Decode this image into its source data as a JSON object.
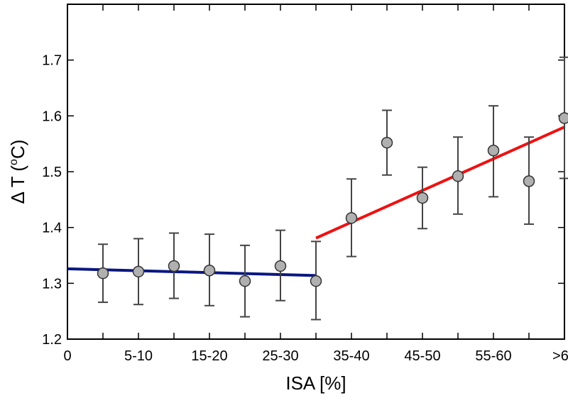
{
  "chart_data": {
    "type": "scatter",
    "xlabel": "ISA [%]",
    "ylabel_main": "Δ T (",
    "ylabel_sup": "o",
    "ylabel_end": "C)",
    "x_tick_labels": [
      "0",
      "5-10",
      "15-20",
      "25-30",
      "35-40",
      "45-50",
      "55-60",
      ">65"
    ],
    "xlim": [
      0,
      70
    ],
    "ylim": [
      1.2,
      1.8
    ],
    "y_ticks": [
      1.2,
      1.3,
      1.4,
      1.5,
      1.6,
      1.7
    ],
    "y_tick_labels": [
      "1.2",
      "1.3",
      "1.4",
      "1.5",
      "1.6",
      "1.7"
    ],
    "grid": false,
    "points": [
      {
        "x": 5,
        "y": 1.318,
        "err_low": 1.266,
        "err_high": 1.37
      },
      {
        "x": 10,
        "y": 1.321,
        "err_low": 1.262,
        "err_high": 1.38
      },
      {
        "x": 15,
        "y": 1.331,
        "err_low": 1.273,
        "err_high": 1.39
      },
      {
        "x": 20,
        "y": 1.323,
        "err_low": 1.26,
        "err_high": 1.388
      },
      {
        "x": 25,
        "y": 1.304,
        "err_low": 1.24,
        "err_high": 1.368
      },
      {
        "x": 30,
        "y": 1.331,
        "err_low": 1.269,
        "err_high": 1.395
      },
      {
        "x": 35,
        "y": 1.304,
        "err_low": 1.235,
        "err_high": 1.375
      },
      {
        "x": 40,
        "y": 1.417,
        "err_low": 1.348,
        "err_high": 1.487
      },
      {
        "x": 45,
        "y": 1.552,
        "err_low": 1.494,
        "err_high": 1.61
      },
      {
        "x": 50,
        "y": 1.453,
        "err_low": 1.398,
        "err_high": 1.508
      },
      {
        "x": 55,
        "y": 1.492,
        "err_low": 1.424,
        "err_high": 1.562
      },
      {
        "x": 60,
        "y": 1.538,
        "err_low": 1.455,
        "err_high": 1.618
      },
      {
        "x": 65,
        "y": 1.483,
        "err_low": 1.406,
        "err_high": 1.562
      },
      {
        "x": 70,
        "y": 1.596,
        "err_low": 1.488,
        "err_high": 1.705
      }
    ],
    "fit_lines": [
      {
        "color": "#0a1780",
        "x": [
          0,
          35
        ],
        "y": [
          1.326,
          1.314
        ]
      },
      {
        "color": "#ee1111",
        "x": [
          35,
          70
        ],
        "y": [
          1.381,
          1.58
        ]
      }
    ],
    "marker_color": "#b0b0b0",
    "errorbar_color": "#444444"
  }
}
